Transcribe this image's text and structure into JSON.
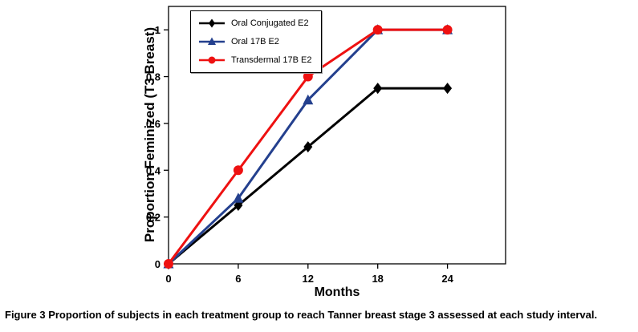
{
  "chart_data": {
    "type": "line",
    "title": "",
    "xlabel": "Months",
    "ylabel": "Proportion Feminized (T3 Breast)",
    "x": [
      0,
      6,
      12,
      18,
      24
    ],
    "x_ticks": [
      0,
      6,
      12,
      18,
      24
    ],
    "y_ticks": [
      0,
      0.2,
      0.4,
      0.6,
      0.8,
      1
    ],
    "y_tick_labels": [
      "0",
      "0.2",
      "0.4",
      "0.6",
      "0.8",
      "1"
    ],
    "xlim": [
      0,
      29
    ],
    "ylim": [
      0,
      1.1
    ],
    "grid": false,
    "legend_position": "top-left-inside",
    "series": [
      {
        "name": "Oral Conjugated E2",
        "marker": "diamond",
        "color": "#000000",
        "values": [
          0,
          0.25,
          0.5,
          0.75,
          0.75
        ]
      },
      {
        "name": "Oral 17B E2",
        "marker": "triangle",
        "color": "#24408e",
        "values": [
          0,
          0.28,
          0.7,
          1,
          1
        ]
      },
      {
        "name": "Transdermal 17B E2",
        "marker": "circle",
        "color": "#ee1111",
        "values": [
          0,
          0.4,
          0.8,
          1,
          1
        ]
      }
    ]
  },
  "caption": {
    "label": "Figure 3",
    "text": "Proportion of subjects in each treatment group to reach Tanner breast stage 3 assessed at each study interval."
  }
}
